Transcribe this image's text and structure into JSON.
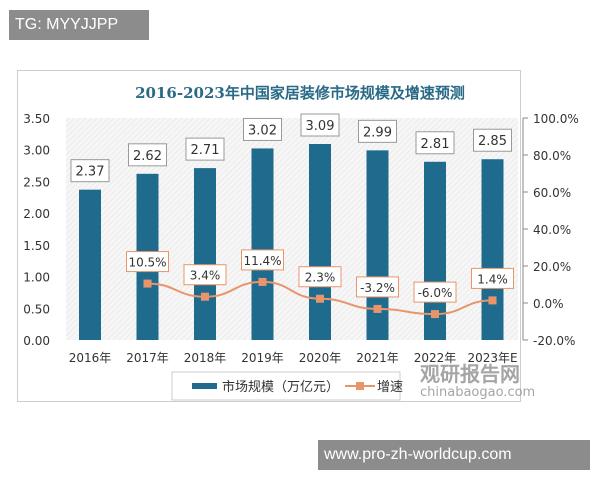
{
  "watermarks": {
    "top": "TG: MYYJJPP",
    "bottom": "www.pro-zh-worldcup.com",
    "logo": "观研报告网",
    "logo_url": "chinabaogao.com"
  },
  "chart_data": {
    "type": "bar+line",
    "title": "2016-2023年中国家居装修市场规模及增速预测",
    "categories": [
      "2016年",
      "2017年",
      "2018年",
      "2019年",
      "2020年",
      "2021年",
      "2022年",
      "2023年E"
    ],
    "series": [
      {
        "name": "市场规模（万亿元）",
        "type": "bar",
        "axis": "left",
        "color": "#1f6b8e",
        "values": [
          2.37,
          2.62,
          2.71,
          3.02,
          3.09,
          2.99,
          2.81,
          2.85
        ],
        "labels": [
          "2.37",
          "2.62",
          "2.71",
          "3.02",
          "3.09",
          "2.99",
          "2.81",
          "2.85"
        ]
      },
      {
        "name": "增速",
        "type": "line",
        "axis": "right",
        "color": "#e8956b",
        "values": [
          null,
          10.5,
          3.4,
          11.4,
          2.3,
          -3.2,
          -6.0,
          1.4
        ],
        "labels": [
          "",
          "10.5%",
          "3.4%",
          "11.4%",
          "2.3%",
          "-3.2%",
          "-6.0%",
          "1.4%"
        ]
      }
    ],
    "left_axis": {
      "ylim": [
        0,
        3.5
      ],
      "ticks": [
        "0.00",
        "0.50",
        "1.00",
        "1.50",
        "2.00",
        "2.50",
        "3.00",
        "3.50"
      ]
    },
    "right_axis": {
      "ylim": [
        -20,
        100
      ],
      "ticks": [
        "-20.0%",
        "0.0%",
        "20.0%",
        "40.0%",
        "60.0%",
        "80.0%",
        "100.0%"
      ]
    },
    "legend": "bottom"
  }
}
